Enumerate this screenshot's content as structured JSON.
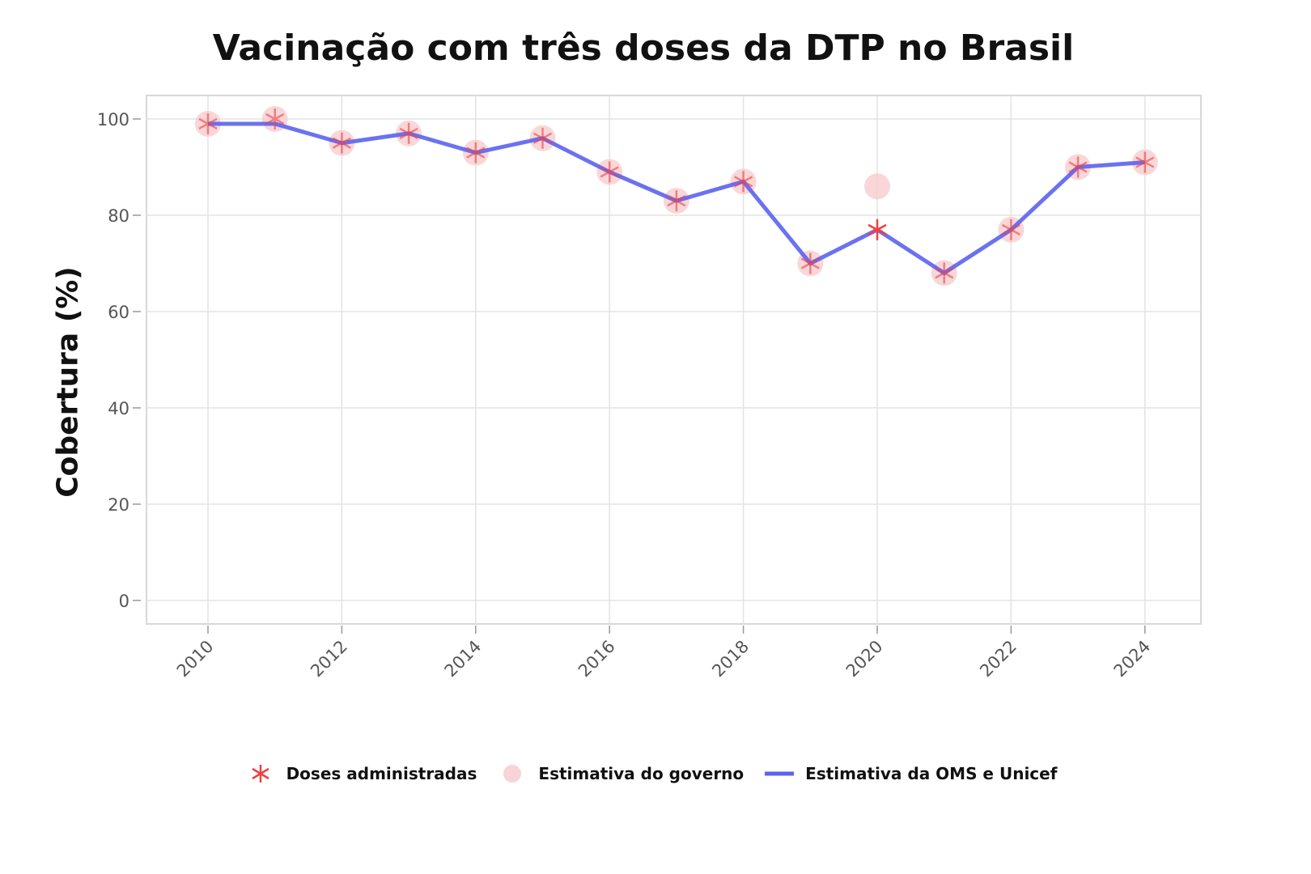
{
  "chart_data": {
    "type": "line",
    "title": "Vacinação com três doses da DTP no Brasil",
    "xlabel": "",
    "ylabel": "Cobertura (%)",
    "x": [
      2010,
      2011,
      2012,
      2013,
      2014,
      2015,
      2016,
      2017,
      2018,
      2019,
      2020,
      2021,
      2022,
      2023,
      2024
    ],
    "x_ticks": [
      "2010",
      "2012",
      "2014",
      "2016",
      "2018",
      "2020",
      "2022",
      "2024"
    ],
    "y_ticks": [
      "0",
      "20",
      "40",
      "60",
      "80",
      "100"
    ],
    "xlim": [
      2009.1,
      2024.8
    ],
    "ylim": [
      -5,
      105
    ],
    "grid": true,
    "legend_position": "bottom",
    "series": [
      {
        "name": "Doses administradas",
        "kind": "marker-asterisk",
        "color": "#f04040",
        "values": [
          99,
          100,
          95,
          97,
          93,
          96,
          89,
          83,
          87,
          70,
          77,
          68,
          77,
          90,
          91
        ]
      },
      {
        "name": "Estimativa do governo",
        "kind": "marker-circle",
        "color": "#f7c9cc",
        "values": [
          99,
          100,
          95,
          97,
          93,
          96,
          89,
          83,
          87,
          70,
          86,
          68,
          77,
          90,
          91
        ]
      },
      {
        "name": "Estimativa da OMS e Unicef",
        "kind": "line",
        "color": "#5b63ee",
        "values": [
          99,
          99,
          95,
          97,
          93,
          96,
          89,
          83,
          87,
          70,
          77,
          68,
          77,
          90,
          91
        ]
      }
    ]
  }
}
